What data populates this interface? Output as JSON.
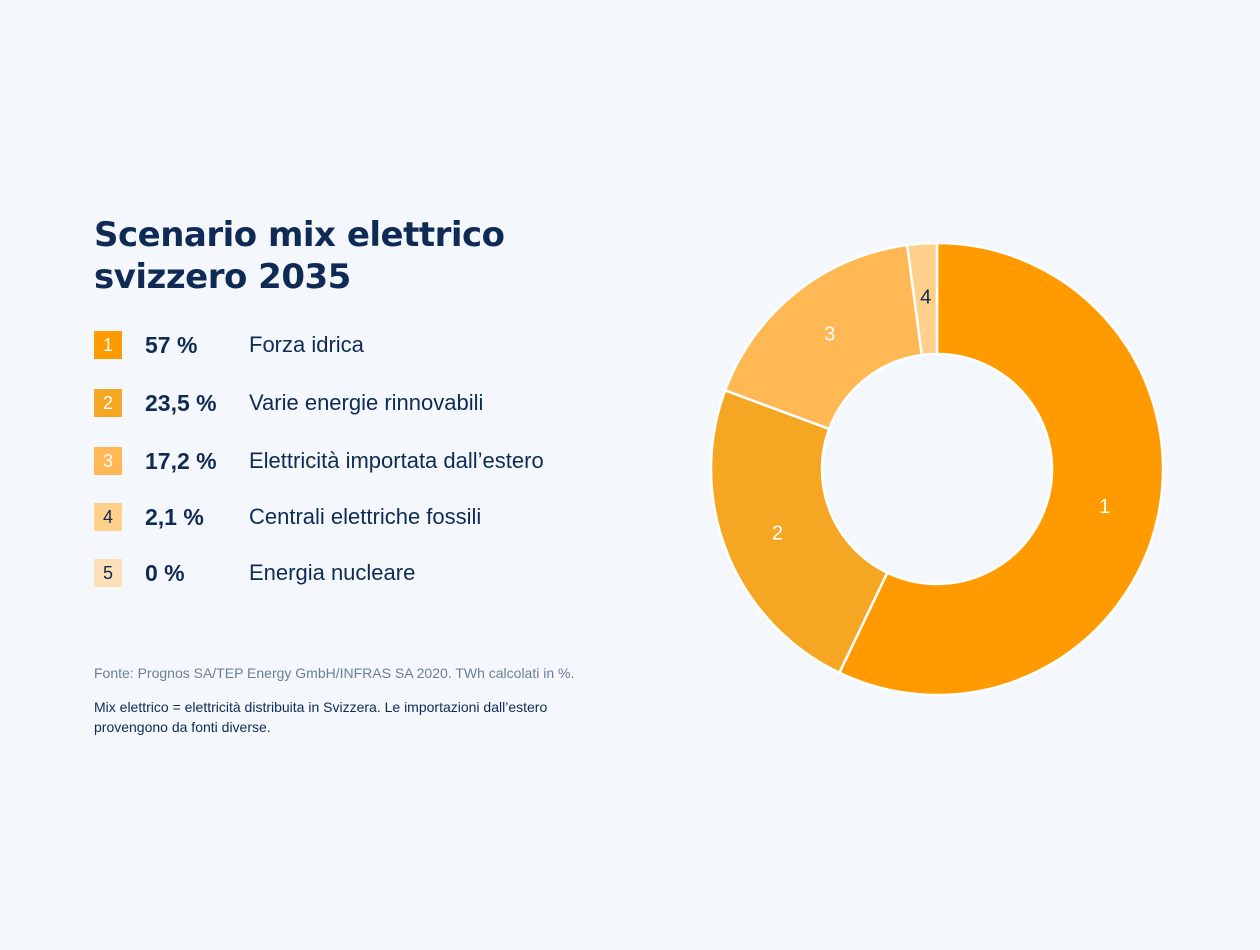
{
  "chart_data": {
    "type": "pie",
    "variant": "donut",
    "title": "Scenario mix elettrico svizzero 2035",
    "title_lines": [
      "Scenario mix elettrico",
      "svizzero 2035"
    ],
    "categories": [
      "Forza idrica",
      "Varie energie rinnovabili",
      "Elettricità importata dall’estero",
      "Centrali elettriche fossili",
      "Energia nucleare"
    ],
    "values": [
      57,
      23.5,
      17.2,
      2.1,
      0
    ],
    "value_labels": [
      "57 %",
      "23,5 %",
      "17,2 %",
      "2,1 %",
      "0 %"
    ],
    "slice_labels": [
      "1",
      "2",
      "3",
      "4",
      "5"
    ],
    "colors": [
      "#ff9b00",
      "#f5a623",
      "#ffb854",
      "#ffd08c",
      "#fde0b8"
    ],
    "badge_text_colors": [
      "#ffffff",
      "#ffffff",
      "#ffffff",
      "#0f2b55",
      "#0f2b55"
    ],
    "slice_label_colors": [
      "#ffffff",
      "#ffffff",
      "#ffffff",
      "#0f2b55",
      "#0f2b55"
    ],
    "unit": "%"
  },
  "footer": {
    "source": "Fonte: Prognos SA/TEP Energy GmbH/INFRAS SA 2020. TWh calcolati in %.",
    "note": "Mix elettrico = elettricità distribuita in Svizzera. Le importazioni dall’estero provengono da fonti diverse."
  }
}
